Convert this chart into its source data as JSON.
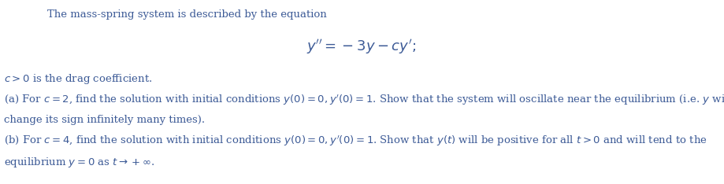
{
  "bg_color": "#ffffff",
  "text_color": "#3c5a96",
  "line1": "The mass-spring system is described by the equation",
  "equation": "$y'' = -3y - cy';$",
  "line3": "$c > 0$ is the drag coefficient.",
  "line4a": "(a) For $c = 2$, find the solution with initial conditions $y(0) = 0, y'(0) = 1$. Show that the system will oscillate near the equilibrium (i.e. $y$ will",
  "line4b": "change its sign infinitely many times).",
  "line5a": "(b) For $c = 4$, find the solution with initial conditions $y(0) = 0, y'(0) = 1$. Show that $y(t)$ will be positive for all $t > 0$ and will tend to the",
  "line5b": "equilibrium $y = 0$ as $t \\to +\\infty$.",
  "font_size": 9.5,
  "eq_font_size": 13.0
}
